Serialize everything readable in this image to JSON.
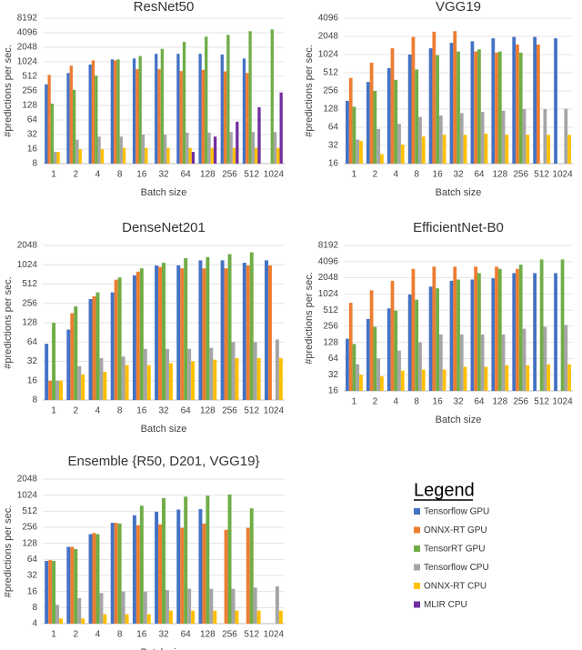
{
  "legend": {
    "title": "Legend",
    "items": [
      {
        "name": "Tensorflow GPU",
        "color": "#4472c4"
      },
      {
        "name": "ONNX-RT GPU",
        "color": "#ed7d31"
      },
      {
        "name": "TensorRT GPU",
        "color": "#70ad47"
      },
      {
        "name": "Tensorflow CPU",
        "color": "#a5a5a5"
      },
      {
        "name": "ONNX-RT CPU",
        "color": "#ffc000"
      },
      {
        "name": "MLIR CPU",
        "color": "#7030a0"
      }
    ]
  },
  "chart_data": [
    {
      "type": "bar",
      "title": "ResNet50",
      "x_label": "Batch size",
      "y_label": "#predictions per sec.",
      "yscale": "log",
      "grid": true,
      "categories": [
        "1",
        "2",
        "4",
        "8",
        "16",
        "32",
        "64",
        "128",
        "256",
        "512",
        "1024"
      ],
      "ylim": [
        8,
        8192
      ],
      "yticks": [
        8,
        16,
        32,
        64,
        128,
        256,
        512,
        1024,
        2048,
        4096,
        8192
      ],
      "series": [
        {
          "values": [
            350,
            600,
            900,
            1150,
            1200,
            1500,
            1500,
            1500,
            1450,
            1200,
            null
          ]
        },
        {
          "values": [
            550,
            850,
            1100,
            1100,
            720,
            720,
            660,
            700,
            650,
            600,
            null
          ]
        },
        {
          "values": [
            140,
            270,
            530,
            1150,
            1350,
            1900,
            2650,
            3400,
            3700,
            4400,
            4800
          ]
        },
        {
          "values": [
            14,
            25,
            29,
            29,
            32,
            32,
            35,
            35,
            36,
            36,
            36
          ]
        },
        {
          "values": [
            14,
            16,
            16,
            17,
            17,
            17,
            17,
            17,
            17,
            17,
            17
          ]
        },
        {
          "values": [
            null,
            null,
            null,
            null,
            null,
            null,
            14,
            29,
            59,
            118,
            237
          ]
        }
      ]
    },
    {
      "type": "bar",
      "title": "VGG19",
      "x_label": "Batch size",
      "y_label": "#predictions per sec.",
      "yscale": "log",
      "grid": true,
      "categories": [
        "1",
        "2",
        "4",
        "8",
        "16",
        "32",
        "64",
        "128",
        "256",
        "512",
        "1024"
      ],
      "ylim": [
        16,
        4096
      ],
      "yticks": [
        16,
        32,
        64,
        128,
        256,
        512,
        1024,
        2048,
        4096
      ],
      "series": [
        {
          "values": [
            175,
            360,
            610,
            1024,
            1300,
            1600,
            1700,
            1900,
            2000,
            2000,
            1900
          ]
        },
        {
          "values": [
            420,
            750,
            1300,
            2000,
            2450,
            2500,
            1150,
            1100,
            1500,
            1500,
            null
          ]
        },
        {
          "values": [
            140,
            256,
            390,
            580,
            1000,
            1150,
            1250,
            1150,
            1100,
            null,
            null
          ]
        },
        {
          "values": [
            40,
            60,
            73,
            95,
            100,
            110,
            115,
            120,
            128,
            128,
            130
          ]
        },
        {
          "values": [
            38,
            23,
            33,
            45,
            48,
            48,
            50,
            48,
            48,
            48,
            48
          ]
        }
      ]
    },
    {
      "type": "bar",
      "title": "DenseNet201",
      "x_label": "Batch size",
      "y_label": "#predictions per sec.",
      "yscale": "log",
      "grid": true,
      "categories": [
        "1",
        "2",
        "4",
        "8",
        "16",
        "32",
        "64",
        "128",
        "256",
        "512",
        "1024"
      ],
      "ylim": [
        8,
        2048
      ],
      "yticks": [
        8,
        16,
        32,
        64,
        128,
        256,
        512,
        1024,
        2048
      ],
      "series": [
        {
          "values": [
            60,
            100,
            300,
            380,
            700,
            1000,
            1000,
            1200,
            1200,
            1100,
            1200
          ]
        },
        {
          "values": [
            16,
            180,
            330,
            600,
            800,
            950,
            900,
            900,
            900,
            1000,
            1000
          ]
        },
        {
          "values": [
            128,
            230,
            380,
            650,
            900,
            1100,
            1300,
            1350,
            1500,
            1600,
            null
          ]
        },
        {
          "values": [
            16,
            27,
            36,
            38,
            50,
            50,
            50,
            52,
            64,
            64,
            70
          ]
        },
        {
          "values": [
            16,
            20,
            22,
            28,
            28,
            30,
            32,
            34,
            36,
            36,
            36
          ]
        }
      ]
    },
    {
      "type": "bar",
      "title": "EfficientNet-B0",
      "x_label": "Batch size",
      "y_label": "#predictions per sec.",
      "yscale": "log",
      "grid": true,
      "categories": [
        "1",
        "2",
        "4",
        "8",
        "16",
        "32",
        "64",
        "128",
        "256",
        "512",
        "1024"
      ],
      "ylim": [
        16,
        8192
      ],
      "yticks": [
        16,
        32,
        64,
        128,
        256,
        512,
        1024,
        2048,
        4096,
        8192
      ],
      "series": [
        {
          "values": [
            150,
            350,
            550,
            1000,
            1400,
            1800,
            1900,
            2000,
            2500,
            2500,
            2500
          ]
        },
        {
          "values": [
            700,
            1200,
            1800,
            3000,
            3300,
            3300,
            3300,
            3300,
            3000,
            null,
            null
          ]
        },
        {
          "values": [
            120,
            250,
            500,
            800,
            1300,
            1900,
            2500,
            3000,
            3600,
            4500,
            4500
          ]
        },
        {
          "values": [
            50,
            64,
            90,
            128,
            180,
            180,
            180,
            180,
            230,
            250,
            270
          ]
        },
        {
          "values": [
            32,
            30,
            38,
            40,
            40,
            45,
            45,
            48,
            48,
            50,
            50
          ]
        }
      ]
    },
    {
      "type": "bar",
      "title": "Ensemble {R50, D201, VGG19}",
      "x_label": "Batch size",
      "y_label": "#predictions per sec.",
      "yscale": "log",
      "grid": true,
      "categories": [
        "1",
        "2",
        "4",
        "8",
        "16",
        "32",
        "64",
        "128",
        "256",
        "512",
        "1024"
      ],
      "ylim": [
        4,
        2048
      ],
      "yticks": [
        4,
        8,
        16,
        32,
        64,
        128,
        256,
        512,
        1024,
        2048
      ],
      "series": [
        {
          "values": [
            60,
            110,
            190,
            310,
            430,
            500,
            550,
            560,
            null,
            null,
            null
          ]
        },
        {
          "values": [
            62,
            110,
            200,
            310,
            280,
            290,
            250,
            300,
            230,
            250,
            null
          ]
        },
        {
          "values": [
            60,
            100,
            190,
            300,
            650,
            900,
            960,
            1000,
            1050,
            580,
            null
          ]
        },
        {
          "values": [
            9,
            12,
            15,
            16,
            16,
            17,
            18,
            18,
            18,
            19,
            20
          ]
        },
        {
          "values": [
            5,
            5,
            6,
            6,
            6,
            7,
            7,
            7,
            7,
            7,
            7
          ]
        }
      ]
    }
  ]
}
